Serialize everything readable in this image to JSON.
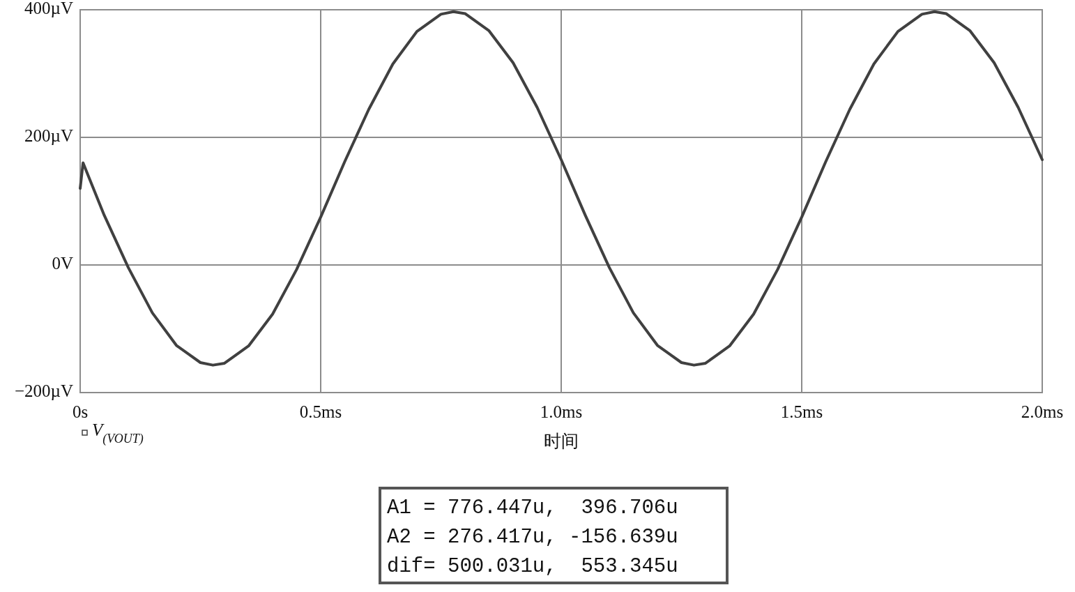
{
  "chart_data": {
    "type": "line",
    "xlabel": "时间",
    "x": [
      0,
      0.006,
      0.05,
      0.1,
      0.15,
      0.2,
      0.25,
      0.276,
      0.3,
      0.35,
      0.4,
      0.45,
      0.5,
      0.55,
      0.6,
      0.65,
      0.7,
      0.75,
      0.776,
      0.8,
      0.85,
      0.9,
      0.95,
      1.0,
      1.05,
      1.1,
      1.15,
      1.2,
      1.25,
      1.276,
      1.3,
      1.35,
      1.4,
      1.45,
      1.5,
      1.55,
      1.6,
      1.65,
      1.7,
      1.75,
      1.776,
      1.8,
      1.85,
      1.9,
      1.95,
      2.0
    ],
    "series": [
      {
        "name": "V$_{(VOUT)}$",
        "color": "#404040",
        "values": [
          120,
          160,
          78,
          -4,
          -75,
          -126,
          -153,
          -157,
          -154,
          -127,
          -77,
          -7,
          75,
          162,
          244,
          315,
          366,
          393,
          397,
          394,
          367,
          317,
          247,
          165,
          78,
          -4,
          -75,
          -126,
          -153,
          -157,
          -154,
          -127,
          -77,
          -7,
          75,
          162,
          244,
          315,
          366,
          393,
          397,
          394,
          367,
          317,
          247,
          165
        ]
      }
    ],
    "xlim": [
      0,
      2.0
    ],
    "xticks": [
      {
        "value": 0,
        "label": "0s"
      },
      {
        "value": 0.5,
        "label": "0.5ms"
      },
      {
        "value": 1.0,
        "label": "1.0ms"
      },
      {
        "value": 1.5,
        "label": "1.5ms"
      },
      {
        "value": 2.0,
        "label": "2.0ms"
      }
    ],
    "ylim": [
      -200,
      400
    ],
    "yticks": [
      {
        "value": -200,
        "label": "−200µV"
      },
      {
        "value": 0,
        "label": "0V"
      },
      {
        "value": 200,
        "label": "200µV"
      },
      {
        "value": 400,
        "label": "400µV"
      }
    ],
    "grid": true,
    "legend": "bottom left",
    "marker": "none",
    "line_style": "solid",
    "annotations": [
      "A1 = 776.447u,  396.706u",
      "A2 = 276.417u, -156.639u",
      "dif= 500.031u,  553.345u"
    ]
  }
}
